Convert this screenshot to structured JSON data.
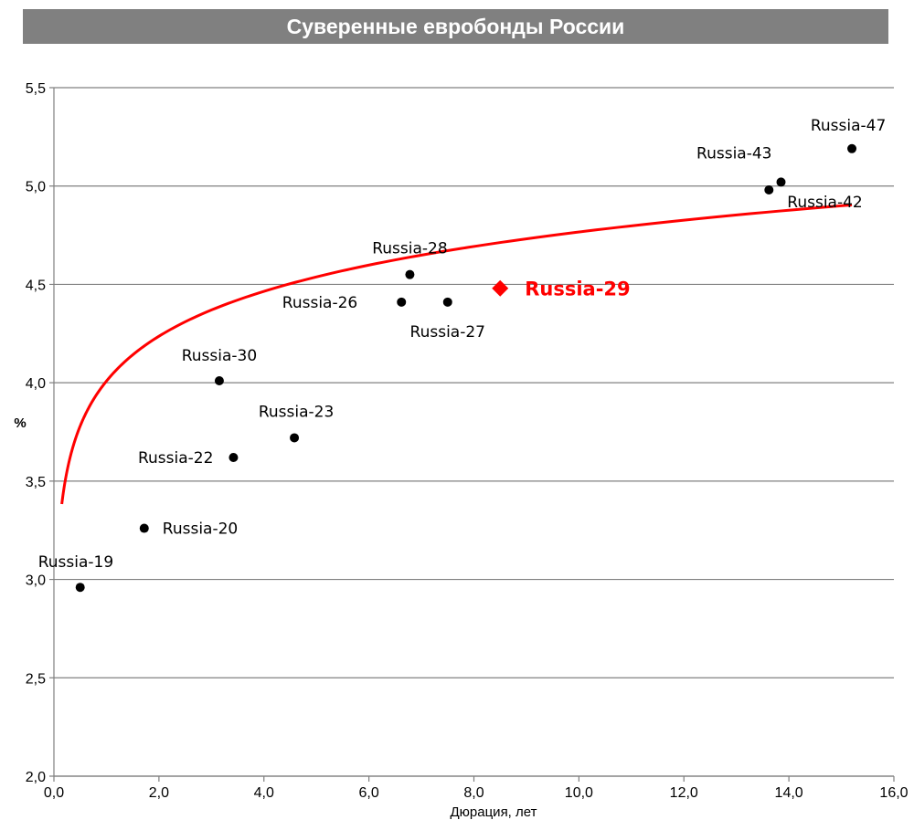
{
  "chart_data": {
    "type": "scatter",
    "title": "Суверенные евробонды России",
    "xlabel": "Дюрация, лет",
    "ylabel": "%",
    "xlim": [
      0,
      16
    ],
    "ylim": [
      2.0,
      5.5
    ],
    "x_ticks": [
      "0,0",
      "2,0",
      "4,0",
      "6,0",
      "8,0",
      "10,0",
      "12,0",
      "14,0",
      "16,0"
    ],
    "y_ticks": [
      "2,0",
      "2,5",
      "3,0",
      "3,5",
      "4,0",
      "4,5",
      "5,0",
      "5,5"
    ],
    "grid": "horizontal",
    "colors": {
      "points": "#000000",
      "highlight": "#ff0000",
      "trend": "#ff0000",
      "grid": "#808080"
    },
    "points": [
      {
        "label": "Russia-19",
        "x": 0.5,
        "y": 2.96
      },
      {
        "label": "Russia-20",
        "x": 1.72,
        "y": 3.26
      },
      {
        "label": "Russia-22",
        "x": 3.42,
        "y": 3.62
      },
      {
        "label": "Russia-30",
        "x": 3.15,
        "y": 4.01
      },
      {
        "label": "Russia-23",
        "x": 4.58,
        "y": 3.72
      },
      {
        "label": "Russia-26",
        "x": 6.62,
        "y": 4.41
      },
      {
        "label": "Russia-28",
        "x": 6.78,
        "y": 4.55
      },
      {
        "label": "Russia-27",
        "x": 7.5,
        "y": 4.41
      },
      {
        "label": "Russia-42",
        "x": 13.62,
        "y": 4.98
      },
      {
        "label": "Russia-43",
        "x": 13.85,
        "y": 5.02
      },
      {
        "label": "Russia-47",
        "x": 15.2,
        "y": 5.19
      }
    ],
    "highlight": {
      "label": "Russia-29",
      "x": 8.5,
      "y": 4.48
    },
    "trendline": {
      "type": "logarithmic",
      "x_range": [
        0.15,
        15.2
      ],
      "a": 4.008,
      "b": 0.3293
    }
  }
}
